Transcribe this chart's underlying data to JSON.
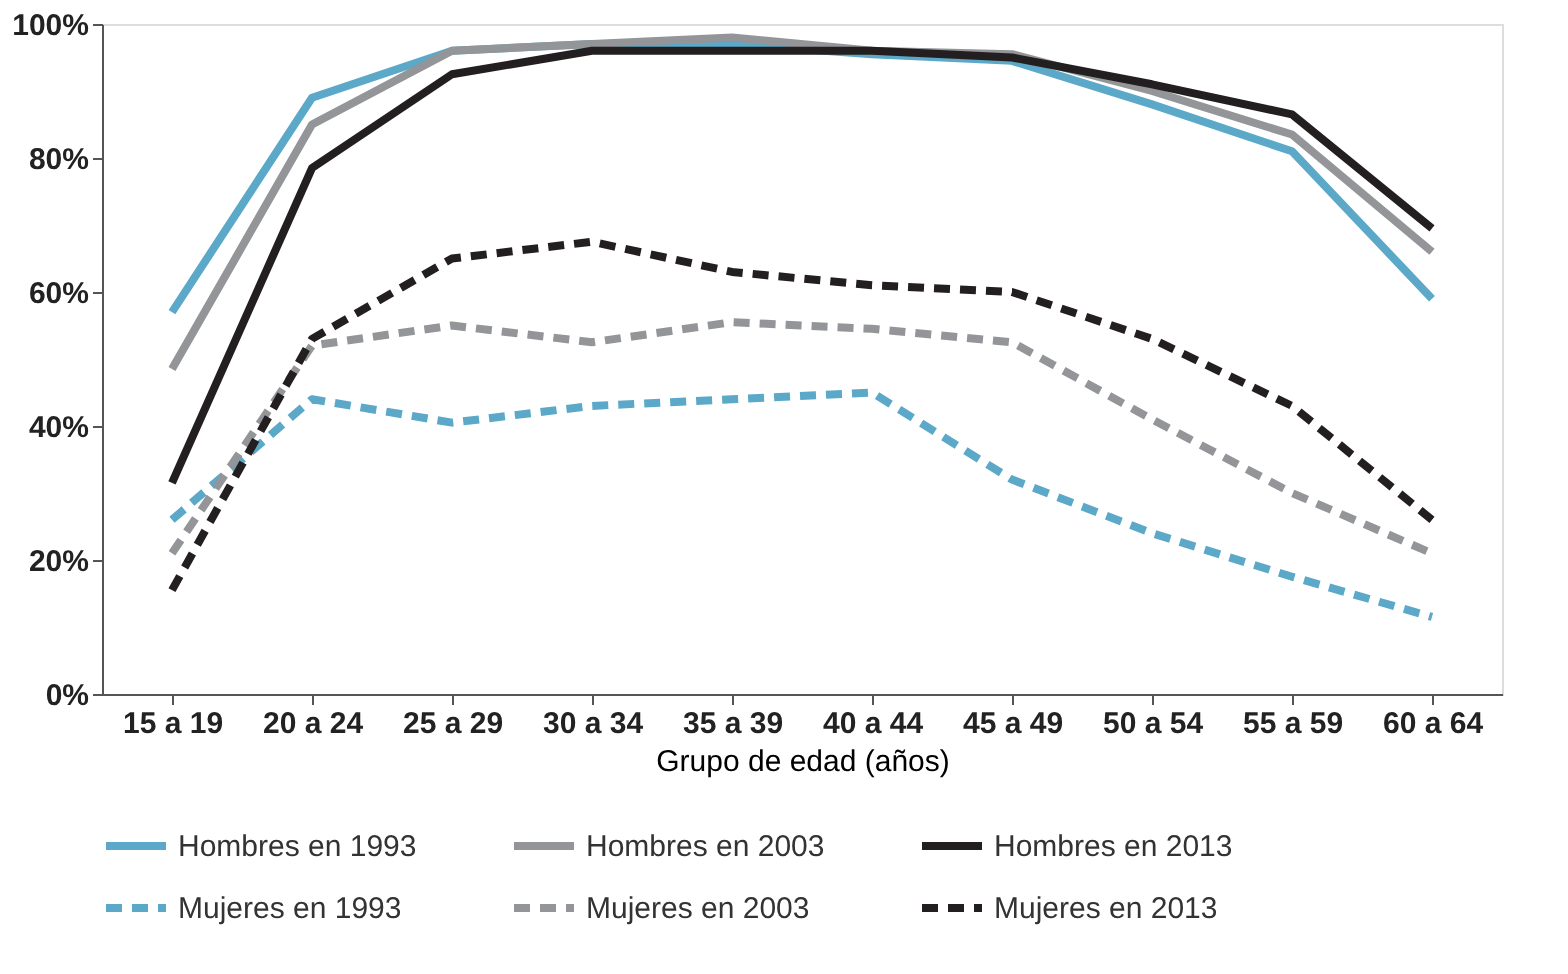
{
  "chart_data": {
    "type": "line",
    "xlabel": "Grupo de edad (años)",
    "categories": [
      "15 a 19",
      "20 a 24",
      "25 a 29",
      "30 a 34",
      "35 a 39",
      "40 a 44",
      "45 a 49",
      "50 a 54",
      "55 a 59",
      "60 a 64"
    ],
    "ylim": [
      0,
      100
    ],
    "yticks": [
      {
        "value": 0,
        "label": "0%"
      },
      {
        "value": 20,
        "label": "20%"
      },
      {
        "value": 40,
        "label": "40%"
      },
      {
        "value": 60,
        "label": "60%"
      },
      {
        "value": 80,
        "label": "80%"
      },
      {
        "value": 100,
        "label": "100%"
      }
    ],
    "grid": false,
    "legend": "bottom",
    "marker": "none",
    "series": [
      {
        "name": "Hombres en 1993",
        "color": "#5ba8c8",
        "line_style": "solid",
        "values": [
          57,
          89,
          96,
          97,
          97,
          95.5,
          94.5,
          88,
          81,
          59
        ]
      },
      {
        "name": "Hombres en 2003",
        "color": "#939598",
        "line_style": "solid",
        "values": [
          48.5,
          85,
          96,
          97,
          98,
          96,
          95.5,
          90,
          83.5,
          66
        ]
      },
      {
        "name": "Hombres en 2013",
        "color": "#231f20",
        "line_style": "solid",
        "values": [
          31.5,
          78.5,
          92.5,
          96,
          96,
          96,
          95,
          91,
          86.5,
          69.5
        ]
      },
      {
        "name": "Mujeres en 1993",
        "color": "#5ba8c8",
        "line_style": "dashed",
        "values": [
          26,
          44,
          40.5,
          43,
          44,
          45,
          32,
          24,
          17.5,
          11.5
        ]
      },
      {
        "name": "Mujeres en 2003",
        "color": "#939598",
        "line_style": "dashed",
        "values": [
          21,
          52,
          55,
          52.5,
          55.5,
          54.5,
          52.5,
          41,
          30,
          21
        ]
      },
      {
        "name": "Mujeres en 2013",
        "color": "#231f20",
        "line_style": "dashed",
        "values": [
          15.5,
          53,
          65,
          67.5,
          63,
          61,
          60,
          53,
          43,
          26
        ]
      }
    ]
  }
}
